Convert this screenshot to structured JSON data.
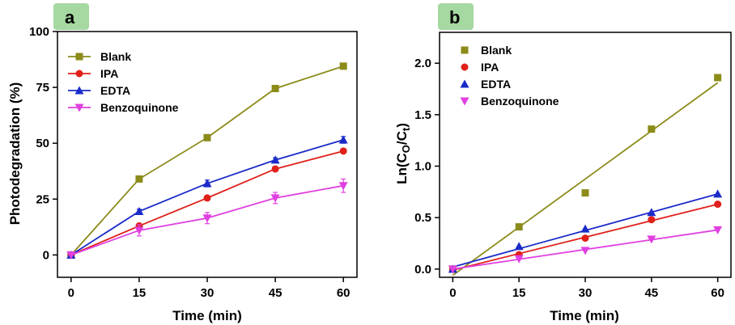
{
  "chart_data": [
    {
      "panel_label": "a",
      "type": "line",
      "xlabel": "Time (min)",
      "ylabel": "Photodegradation (%)",
      "xlim": [
        -3,
        63
      ],
      "ylim": [
        -10,
        100
      ],
      "xticks": [
        0,
        15,
        30,
        45,
        60
      ],
      "yticks": [
        0,
        25,
        50,
        75,
        100
      ],
      "x": [
        0,
        15,
        30,
        45,
        60
      ],
      "legend_position": "top-left",
      "grid": false,
      "series": [
        {
          "name": "Blank",
          "color": "#8B8B1A",
          "marker": "square",
          "values": [
            0,
            34,
            52.5,
            74.5,
            84.5
          ],
          "errors": [
            0,
            1,
            1,
            1,
            1
          ]
        },
        {
          "name": "IPA",
          "color": "#E0201A",
          "marker": "circle",
          "values": [
            0,
            13,
            25.5,
            38.5,
            46.5
          ],
          "errors": [
            0,
            1,
            1,
            1,
            1
          ]
        },
        {
          "name": "EDTA",
          "color": "#1A2BC8",
          "marker": "triangle-up",
          "values": [
            0,
            19.5,
            32,
            42.5,
            51.5
          ],
          "errors": [
            0,
            1,
            1.5,
            1,
            1.5
          ]
        },
        {
          "name": "Benzoquinone",
          "color": "#E040E0",
          "marker": "triangle-down",
          "values": [
            0,
            11,
            16.5,
            25.5,
            31
          ],
          "errors": [
            0,
            2.5,
            2.5,
            2.5,
            3
          ]
        }
      ]
    },
    {
      "panel_label": "b",
      "type": "scatter",
      "xlabel": "Time (min)",
      "ylabel": "Ln(C",
      "ylabel_sub1": "O",
      "ylabel_mid": "/C",
      "ylabel_sub2": "t",
      "ylabel_end": ")",
      "xlim": [
        -3,
        63
      ],
      "ylim": [
        -0.08,
        2.3
      ],
      "xticks": [
        0,
        15,
        30,
        45,
        60
      ],
      "yticks": [
        "0.0",
        "0.5",
        "1.0",
        "1.5",
        "2.0"
      ],
      "x": [
        0,
        15,
        30,
        45,
        60
      ],
      "legend_position": "top-left",
      "grid": false,
      "series": [
        {
          "name": "Blank",
          "color": "#8B8B1A",
          "marker": "square",
          "values": [
            0,
            0.41,
            0.74,
            1.36,
            1.86
          ],
          "fit": [
            -0.06,
            1.81
          ]
        },
        {
          "name": "IPA",
          "color": "#E0201A",
          "marker": "circle",
          "values": [
            0,
            0.14,
            0.3,
            0.48,
            0.63
          ],
          "fit": [
            -0.01,
            0.63
          ]
        },
        {
          "name": "EDTA",
          "color": "#1A2BC8",
          "marker": "triangle-up",
          "values": [
            0,
            0.22,
            0.39,
            0.55,
            0.73
          ],
          "fit": [
            0.02,
            0.73
          ]
        },
        {
          "name": "Benzoquinone",
          "color": "#E040E0",
          "marker": "triangle-down",
          "values": [
            0,
            0.1,
            0.18,
            0.29,
            0.38
          ],
          "fit": [
            0.0,
            0.38
          ]
        }
      ]
    }
  ],
  "colors": {
    "panel_badge": "#A6D8A1",
    "axis": "#000000"
  }
}
